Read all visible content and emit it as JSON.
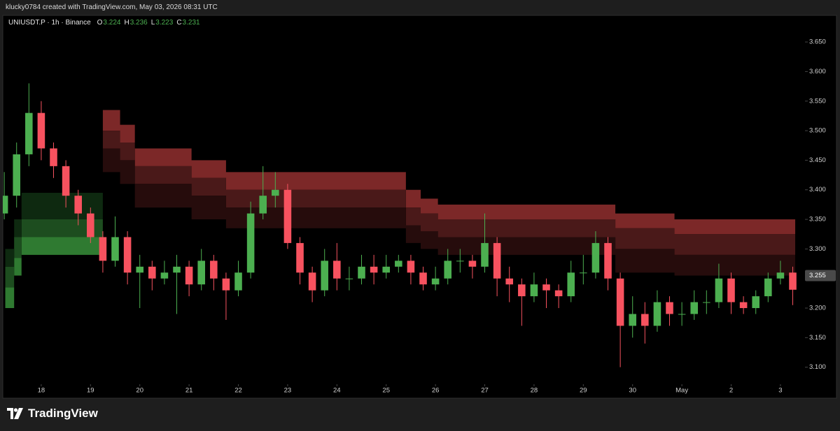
{
  "header": {
    "attribution": "klucky0784 created with TradingView.com, May 03, 2026 08:31 UTC"
  },
  "chart_data": {
    "type": "candlestick",
    "symbol": "UNIUSDT.P · 1h · Binance",
    "ohlc_legend": [
      {
        "key": "O",
        "value": 3.224
      },
      {
        "key": "H",
        "value": 3.236
      },
      {
        "key": "L",
        "value": 3.223
      },
      {
        "key": "C",
        "value": 3.231
      }
    ],
    "x": [
      17.25,
      17.5,
      17.75,
      18,
      18.25,
      18.5,
      18.75,
      19,
      19.25,
      19.5,
      19.75,
      20,
      20.25,
      20.5,
      20.75,
      21,
      21.25,
      21.5,
      21.75,
      22,
      22.25,
      22.5,
      22.75,
      23,
      23.25,
      23.5,
      23.75,
      24,
      24.25,
      24.5,
      24.75,
      25,
      25.25,
      25.5,
      25.75,
      26,
      26.25,
      26.5,
      26.75,
      27,
      27.25,
      27.5,
      27.75,
      28,
      28.25,
      28.5,
      28.75,
      29,
      29.25,
      29.5,
      29.75,
      30,
      30.25,
      30.5,
      30.75,
      31,
      31.25,
      31.5,
      31.75,
      32,
      32.25,
      32.5,
      32.75,
      33,
      33.25
    ],
    "open": [
      3.36,
      3.39,
      3.46,
      3.53,
      3.47,
      3.44,
      3.39,
      3.36,
      3.32,
      3.28,
      3.32,
      3.26,
      3.27,
      3.25,
      3.26,
      3.27,
      3.24,
      3.28,
      3.25,
      3.23,
      3.26,
      3.36,
      3.39,
      3.4,
      3.31,
      3.26,
      3.23,
      3.28,
      3.25,
      3.25,
      3.27,
      3.26,
      3.27,
      3.28,
      3.26,
      3.24,
      3.25,
      3.28,
      3.28,
      3.27,
      3.31,
      3.25,
      3.24,
      3.22,
      3.24,
      3.23,
      3.22,
      3.26,
      3.26,
      3.31,
      3.25,
      3.17,
      3.19,
      3.17,
      3.21,
      3.19,
      3.19,
      3.21,
      3.21,
      3.25,
      3.21,
      3.2,
      3.22,
      3.25,
      3.26
    ],
    "high": [
      3.43,
      3.48,
      3.58,
      3.55,
      3.48,
      3.45,
      3.4,
      3.37,
      3.33,
      3.355,
      3.33,
      3.29,
      3.28,
      3.28,
      3.29,
      3.28,
      3.3,
      3.29,
      3.26,
      3.28,
      3.38,
      3.44,
      3.43,
      3.41,
      3.32,
      3.27,
      3.3,
      3.31,
      3.27,
      3.29,
      3.29,
      3.29,
      3.29,
      3.29,
      3.27,
      3.27,
      3.3,
      3.3,
      3.29,
      3.36,
      3.32,
      3.27,
      3.25,
      3.26,
      3.25,
      3.24,
      3.28,
      3.29,
      3.33,
      3.32,
      3.26,
      3.22,
      3.21,
      3.23,
      3.22,
      3.21,
      3.23,
      3.23,
      3.275,
      3.26,
      3.22,
      3.23,
      3.26,
      3.28,
      3.27
    ],
    "low": [
      3.35,
      3.37,
      3.44,
      3.45,
      3.42,
      3.37,
      3.34,
      3.31,
      3.26,
      3.27,
      3.24,
      3.2,
      3.23,
      3.24,
      3.19,
      3.22,
      3.23,
      3.23,
      3.18,
      3.22,
      3.25,
      3.35,
      3.37,
      3.3,
      3.24,
      3.21,
      3.22,
      3.23,
      3.23,
      3.24,
      3.24,
      3.25,
      3.26,
      3.24,
      3.23,
      3.23,
      3.24,
      3.26,
      3.25,
      3.26,
      3.22,
      3.21,
      3.17,
      3.21,
      3.2,
      3.2,
      3.21,
      3.24,
      3.25,
      3.23,
      3.1,
      3.15,
      3.14,
      3.16,
      3.17,
      3.17,
      3.18,
      3.19,
      3.2,
      3.19,
      3.19,
      3.19,
      3.21,
      3.24,
      3.205
    ],
    "close": [
      3.39,
      3.46,
      3.53,
      3.47,
      3.44,
      3.39,
      3.36,
      3.32,
      3.28,
      3.32,
      3.26,
      3.27,
      3.25,
      3.26,
      3.27,
      3.24,
      3.28,
      3.25,
      3.23,
      3.26,
      3.36,
      3.39,
      3.4,
      3.31,
      3.26,
      3.23,
      3.28,
      3.25,
      3.25,
      3.27,
      3.26,
      3.27,
      3.28,
      3.26,
      3.24,
      3.25,
      3.28,
      3.28,
      3.27,
      3.31,
      3.25,
      3.24,
      3.22,
      3.24,
      3.23,
      3.22,
      3.26,
      3.26,
      3.31,
      3.25,
      3.17,
      3.19,
      3.17,
      3.21,
      3.19,
      3.19,
      3.21,
      3.21,
      3.25,
      3.21,
      3.2,
      3.22,
      3.25,
      3.26,
      3.231
    ],
    "up_color": "#4caf50",
    "down_color": "#f7525f",
    "zones": [
      {
        "x": [
          19.25,
          19.6,
          19.9,
          21.05,
          21.75,
          25.4,
          25.7,
          26.05,
          29.65,
          30.85,
          33.3
        ],
        "levels": [
          [
            3.535,
            3.51,
            3.47,
            3.45,
            3.43,
            3.4,
            3.385,
            3.375,
            3.36,
            3.35,
            3.345
          ],
          [
            3.5,
            3.48,
            3.44,
            3.42,
            3.4,
            3.37,
            3.36,
            3.35,
            3.335,
            3.325,
            3.315
          ],
          [
            3.47,
            3.45,
            3.41,
            3.39,
            3.37,
            3.34,
            3.33,
            3.32,
            3.3,
            3.29,
            3.285
          ],
          [
            3.43,
            3.41,
            3.37,
            3.35,
            3.335,
            3.31,
            3.3,
            3.29,
            3.26,
            3.255,
            3.25
          ]
        ],
        "layer_colors": [
          "#7c2828",
          "#4a1919",
          "#260c0c"
        ]
      },
      {
        "x": [
          17.27,
          17.45,
          17.6,
          19.25
        ],
        "levels": [
          [
            3.2,
            3.255,
            3.29,
            3.29
          ],
          [
            3.235,
            3.285,
            3.32,
            3.32
          ],
          [
            3.27,
            3.32,
            3.35,
            3.35
          ],
          [
            3.3,
            3.35,
            3.395,
            3.395
          ]
        ],
        "layer_colors": [
          "#2f7a31",
          "#1d4d1f",
          "#0e2910"
        ]
      }
    ],
    "xlim": [
      17.22,
      33.47
    ],
    "xticks": [
      18,
      19,
      20,
      21,
      22,
      23,
      24,
      25,
      26,
      27,
      28,
      29,
      30,
      {
        "value": 31,
        "label": "May"
      },
      {
        "value": 32,
        "label": "2"
      },
      {
        "value": 33,
        "label": "3"
      }
    ],
    "ylim": [
      3.05,
      3.695
    ],
    "yticks": [
      {
        "value": 3.1,
        "label": "3.100"
      },
      {
        "value": 3.15,
        "label": "3.150"
      },
      {
        "value": 3.2,
        "label": "3.200"
      },
      {
        "value": 3.25,
        "label": "3.250"
      },
      {
        "value": 3.3,
        "label": "3.300"
      },
      {
        "value": 3.35,
        "label": "3.350"
      },
      {
        "value": 3.4,
        "label": "3.400"
      },
      {
        "value": 3.45,
        "label": "3.450"
      },
      {
        "value": 3.5,
        "label": "3.500"
      },
      {
        "value": 3.55,
        "label": "3.550"
      },
      {
        "value": 3.6,
        "label": "3.600"
      },
      {
        "value": 3.65,
        "label": "3.650"
      }
    ],
    "price_label": {
      "value": 3.255,
      "label": "3.255"
    }
  },
  "footer": {
    "brand": "TradingView"
  }
}
